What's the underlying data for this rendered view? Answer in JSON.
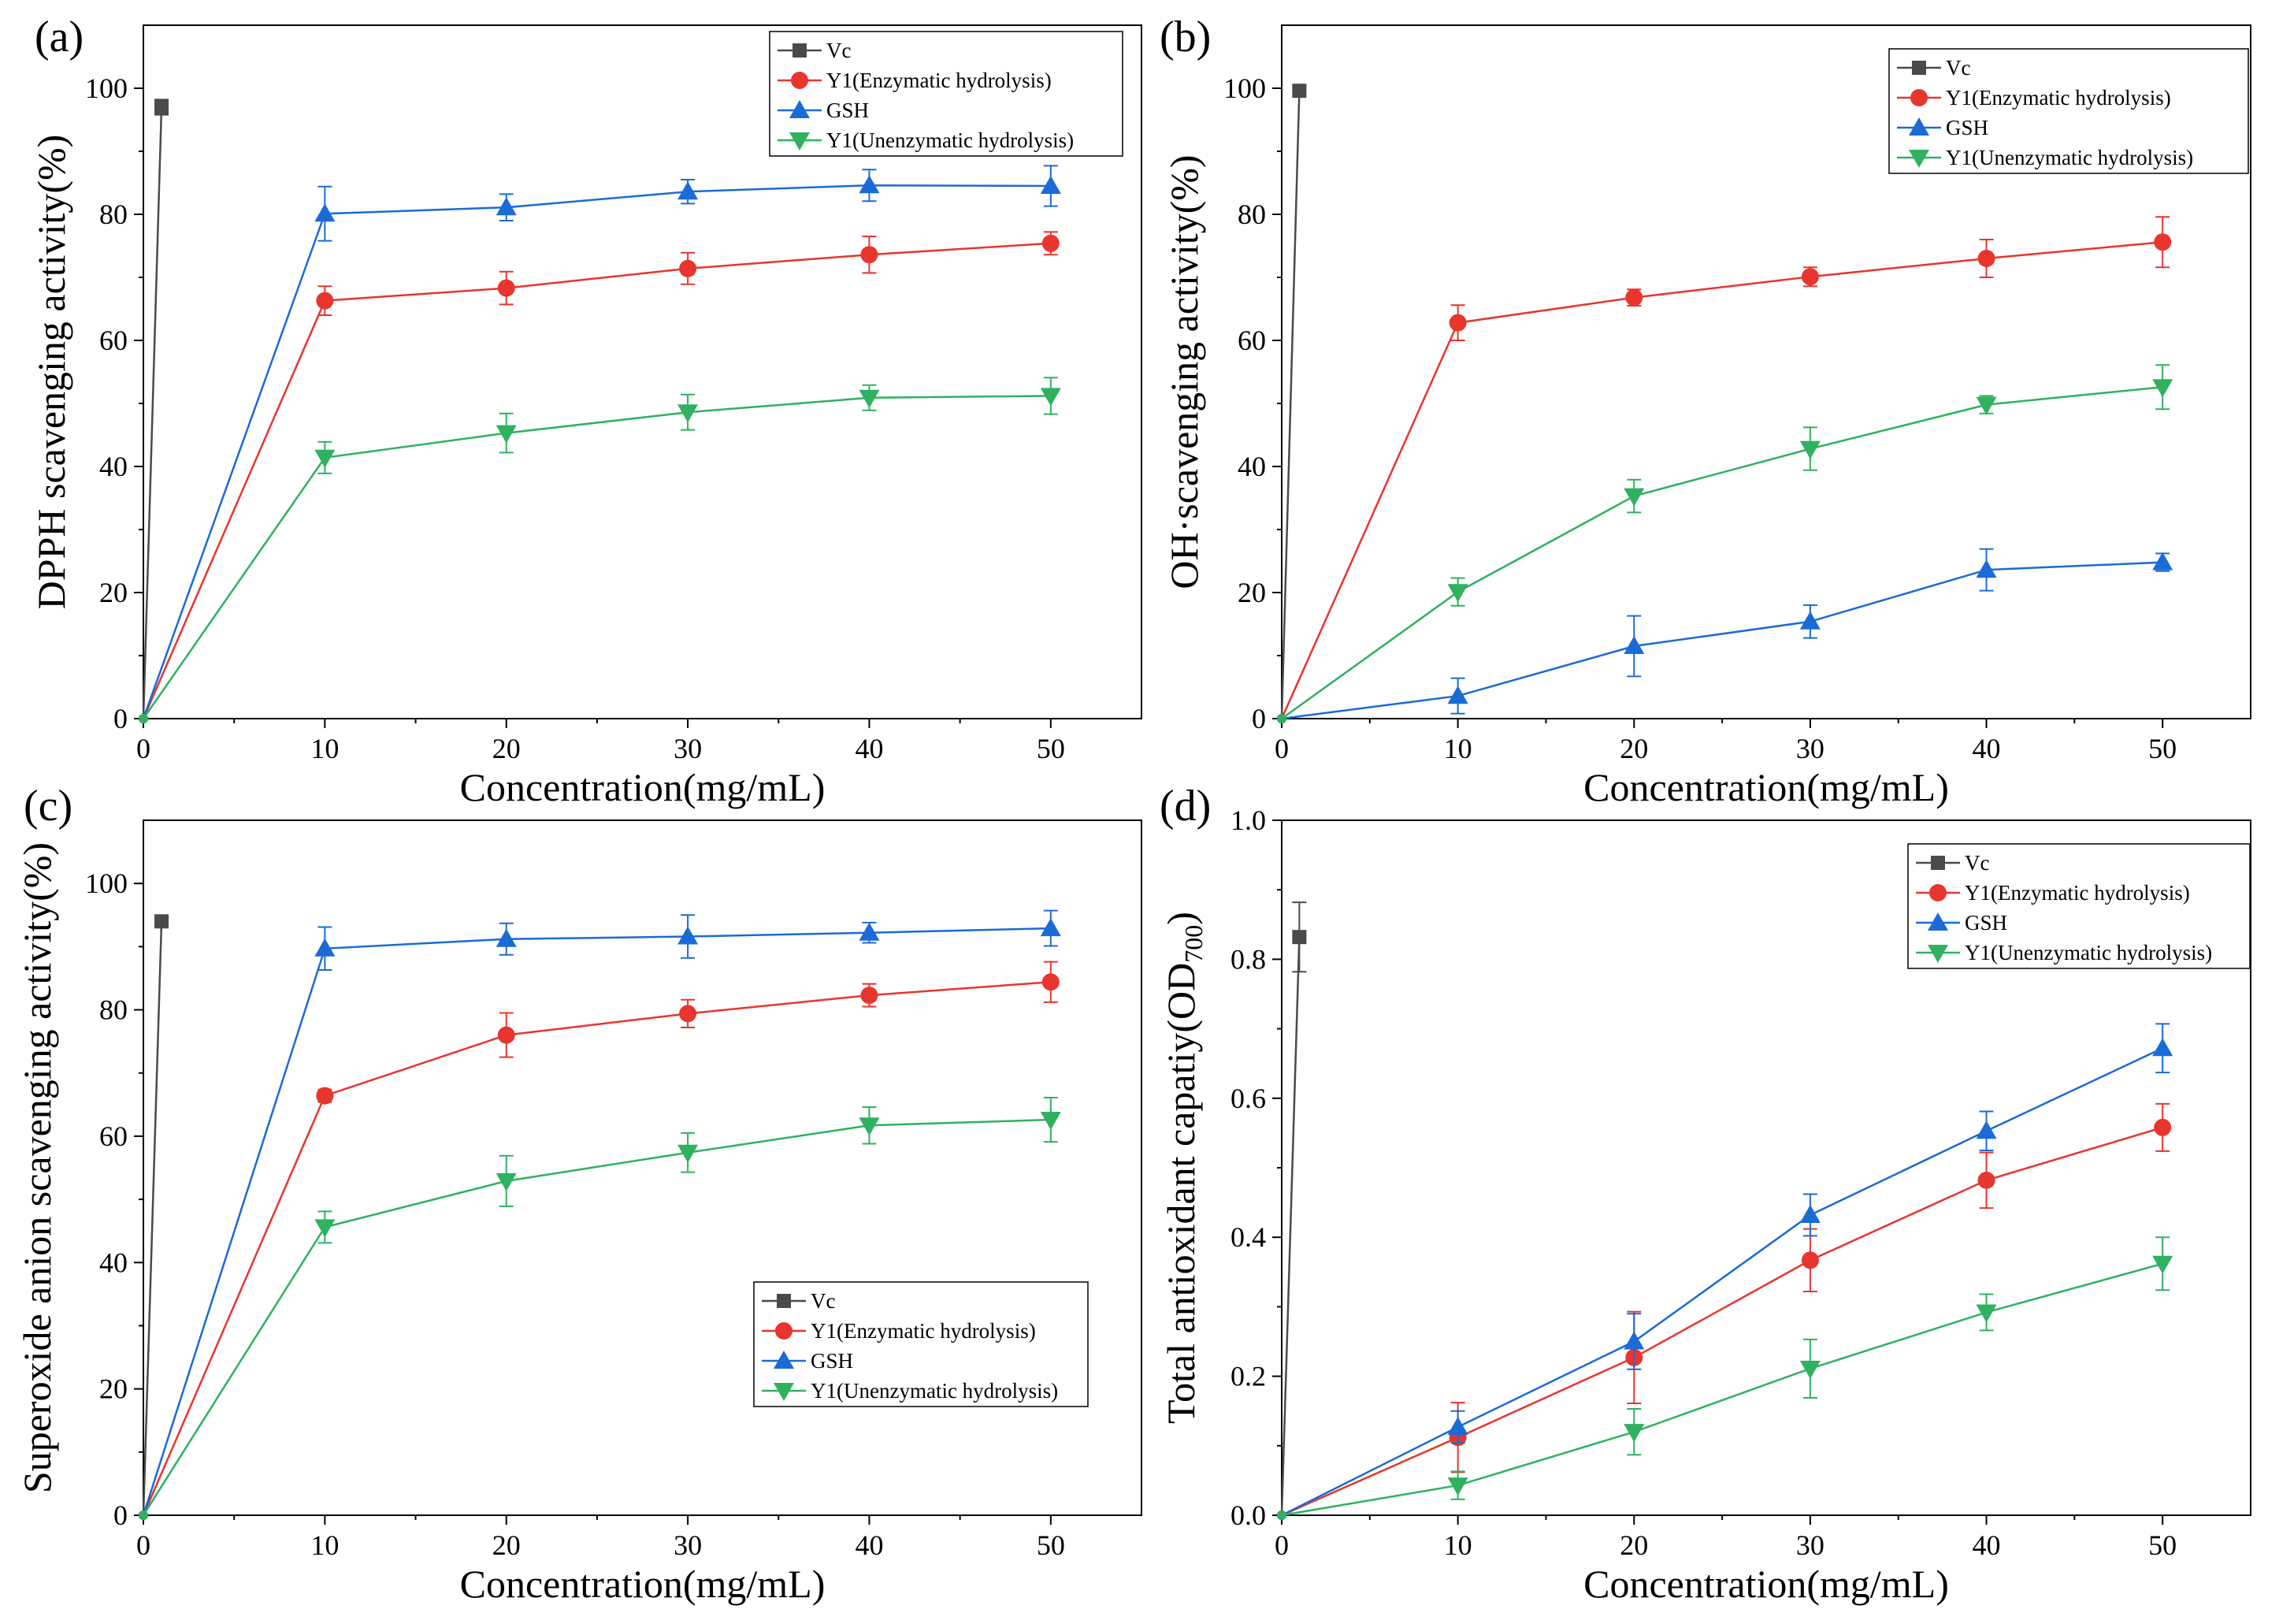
{
  "figure": {
    "colors": {
      "Vc": "#4a4a4a",
      "Y1E": "#e8352e",
      "GSH": "#1a6bd6",
      "Y1U": "#2fb160"
    }
  },
  "chart_data": [
    {
      "type": "line",
      "panel_label": "(a)",
      "title": "",
      "xlabel": "Concentration(mg/mL)",
      "ylabel": "DPPH scavenging activity(%)",
      "xlim": [
        0,
        55
      ],
      "ylim": [
        0,
        110
      ],
      "xticks": [
        0,
        10,
        20,
        30,
        40,
        50
      ],
      "yticks": [
        0,
        20,
        40,
        60,
        80,
        100
      ],
      "ytick_labels": [
        "0",
        "20",
        "40",
        "60",
        "80",
        "100"
      ],
      "legend_position": "top-right",
      "series": [
        {
          "name": "Vc",
          "key": "Vc",
          "marker": "square",
          "x": [
            0,
            1
          ],
          "y": [
            0,
            97
          ],
          "err": [
            0,
            1.2
          ]
        },
        {
          "name": "Y1(Enzymatic hydrolysis)",
          "key": "Y1E",
          "marker": "circle",
          "x": [
            0,
            10,
            20,
            30,
            40,
            50
          ],
          "y": [
            0,
            66.3,
            68.3,
            71.4,
            73.6,
            75.4
          ],
          "err": [
            0,
            2.3,
            2.6,
            2.5,
            2.9,
            1.8
          ]
        },
        {
          "name": "GSH",
          "key": "GSH",
          "marker": "triangle-up",
          "x": [
            0,
            10,
            20,
            30,
            40,
            50
          ],
          "y": [
            0,
            80.1,
            81.1,
            83.6,
            84.6,
            84.5
          ],
          "err": [
            0,
            4.3,
            2.1,
            1.9,
            2.5,
            3.2
          ]
        },
        {
          "name": "Y1(Unenzymatic hydrolysis)",
          "key": "Y1U",
          "marker": "triangle-down",
          "x": [
            0,
            10,
            20,
            30,
            40,
            50
          ],
          "y": [
            0,
            41.4,
            45.3,
            48.6,
            50.9,
            51.2
          ],
          "err": [
            0,
            2.5,
            3.1,
            2.8,
            2.0,
            2.9
          ]
        }
      ]
    },
    {
      "type": "line",
      "panel_label": "(b)",
      "title": "",
      "xlabel": "Concentration(mg/mL)",
      "ylabel": "OH·scavenging activity(%)",
      "xlim": [
        0,
        55
      ],
      "ylim": [
        0,
        110
      ],
      "xticks": [
        0,
        10,
        20,
        30,
        40,
        50
      ],
      "yticks": [
        0,
        20,
        40,
        60,
        80,
        100
      ],
      "ytick_labels": [
        "0",
        "20",
        "40",
        "60",
        "80",
        "100"
      ],
      "legend_position": "top-right",
      "series": [
        {
          "name": "Vc",
          "key": "Vc",
          "marker": "square",
          "x": [
            0,
            1
          ],
          "y": [
            0,
            99.6
          ],
          "err": [
            0,
            0.5
          ]
        },
        {
          "name": "Y1(Enzymatic hydrolysis)",
          "key": "Y1E",
          "marker": "circle",
          "x": [
            0,
            10,
            20,
            30,
            40,
            50
          ],
          "y": [
            0,
            62.8,
            66.8,
            70.1,
            73.0,
            75.6
          ],
          "err": [
            0,
            2.8,
            1.3,
            1.5,
            3.0,
            4.0
          ]
        },
        {
          "name": "GSH",
          "key": "GSH",
          "marker": "triangle-up",
          "x": [
            0,
            10,
            20,
            30,
            40,
            50
          ],
          "y": [
            0,
            3.6,
            11.5,
            15.4,
            23.6,
            24.8
          ],
          "err": [
            0,
            2.8,
            4.8,
            2.6,
            3.3,
            1.4
          ]
        },
        {
          "name": "Y1(Unenzymatic hydrolysis)",
          "key": "Y1U",
          "marker": "triangle-down",
          "x": [
            0,
            10,
            20,
            30,
            40,
            50
          ],
          "y": [
            0,
            20.1,
            35.3,
            42.8,
            49.8,
            52.6
          ],
          "err": [
            0,
            2.2,
            2.6,
            3.4,
            1.4,
            3.5
          ]
        }
      ]
    },
    {
      "type": "line",
      "panel_label": "(c)",
      "title": "",
      "xlabel": "Concentration(mg/mL)",
      "ylabel": "Superoxide anion scavenging activity(%)",
      "xlim": [
        0,
        55
      ],
      "ylim": [
        0,
        110
      ],
      "xticks": [
        0,
        10,
        20,
        30,
        40,
        50
      ],
      "yticks": [
        0,
        20,
        40,
        60,
        80,
        100
      ],
      "ytick_labels": [
        "0",
        "20",
        "40",
        "60",
        "80",
        "100"
      ],
      "legend_position": "bottom-right",
      "series": [
        {
          "name": "Vc",
          "key": "Vc",
          "marker": "square",
          "x": [
            0,
            1
          ],
          "y": [
            0,
            94
          ],
          "err": [
            0,
            0.8
          ]
        },
        {
          "name": "Y1(Enzymatic hydrolysis)",
          "key": "Y1E",
          "marker": "circle",
          "x": [
            0,
            10,
            20,
            30,
            40,
            50
          ],
          "y": [
            0,
            66.4,
            76.0,
            79.4,
            82.3,
            84.4
          ],
          "err": [
            0,
            1.0,
            3.5,
            2.2,
            1.8,
            3.2
          ]
        },
        {
          "name": "GSH",
          "key": "GSH",
          "marker": "triangle-up",
          "x": [
            0,
            10,
            20,
            30,
            40,
            50
          ],
          "y": [
            0,
            89.7,
            91.2,
            91.6,
            92.2,
            92.9
          ],
          "err": [
            0,
            3.4,
            2.5,
            3.4,
            1.6,
            2.8
          ]
        },
        {
          "name": "Y1(Unenzymatic hydrolysis)",
          "key": "Y1U",
          "marker": "triangle-down",
          "x": [
            0,
            10,
            20,
            30,
            40,
            50
          ],
          "y": [
            0,
            45.6,
            52.9,
            57.4,
            61.7,
            62.6
          ],
          "err": [
            0,
            2.5,
            4.0,
            3.1,
            2.9,
            3.5
          ]
        }
      ]
    },
    {
      "type": "line",
      "panel_label": "(d)",
      "title": "",
      "xlabel": "Concentration(mg/mL)",
      "ylabel": "Total antioxidant capatiy(OD",
      "ylabel_subscript": "700",
      "ylabel_suffix": ")",
      "xlim": [
        0,
        55
      ],
      "ylim": [
        0,
        1.0
      ],
      "xticks": [
        0,
        10,
        20,
        30,
        40,
        50
      ],
      "yticks": [
        0,
        0.2,
        0.4,
        0.6,
        0.8,
        1.0
      ],
      "ytick_labels": [
        "0.0",
        "0.2",
        "0.4",
        "0.6",
        "0.8",
        "1.0"
      ],
      "legend_position": "top-right",
      "series": [
        {
          "name": "Vc",
          "key": "Vc",
          "marker": "square",
          "x": [
            0,
            1
          ],
          "y": [
            0,
            0.832
          ],
          "err": [
            0,
            0.05
          ]
        },
        {
          "name": "Y1(Enzymatic hydrolysis)",
          "key": "Y1E",
          "marker": "circle",
          "x": [
            0,
            10,
            20,
            30,
            40,
            50
          ],
          "y": [
            0,
            0.112,
            0.227,
            0.367,
            0.482,
            0.558
          ],
          "err": [
            0,
            0.05,
            0.066,
            0.045,
            0.04,
            0.034
          ]
        },
        {
          "name": "GSH",
          "key": "GSH",
          "marker": "triangle-up",
          "x": [
            0,
            10,
            20,
            30,
            40,
            50
          ],
          "y": [
            0,
            0.127,
            0.25,
            0.432,
            0.553,
            0.672
          ],
          "err": [
            0,
            0.023,
            0.04,
            0.03,
            0.028,
            0.035
          ]
        },
        {
          "name": "Y1(Unenzymatic hydrolysis)",
          "key": "Y1U",
          "marker": "triangle-down",
          "x": [
            0,
            10,
            20,
            30,
            40,
            50
          ],
          "y": [
            0,
            0.043,
            0.12,
            0.211,
            0.292,
            0.362
          ],
          "err": [
            0,
            0.02,
            0.033,
            0.042,
            0.026,
            0.038
          ]
        }
      ]
    }
  ]
}
